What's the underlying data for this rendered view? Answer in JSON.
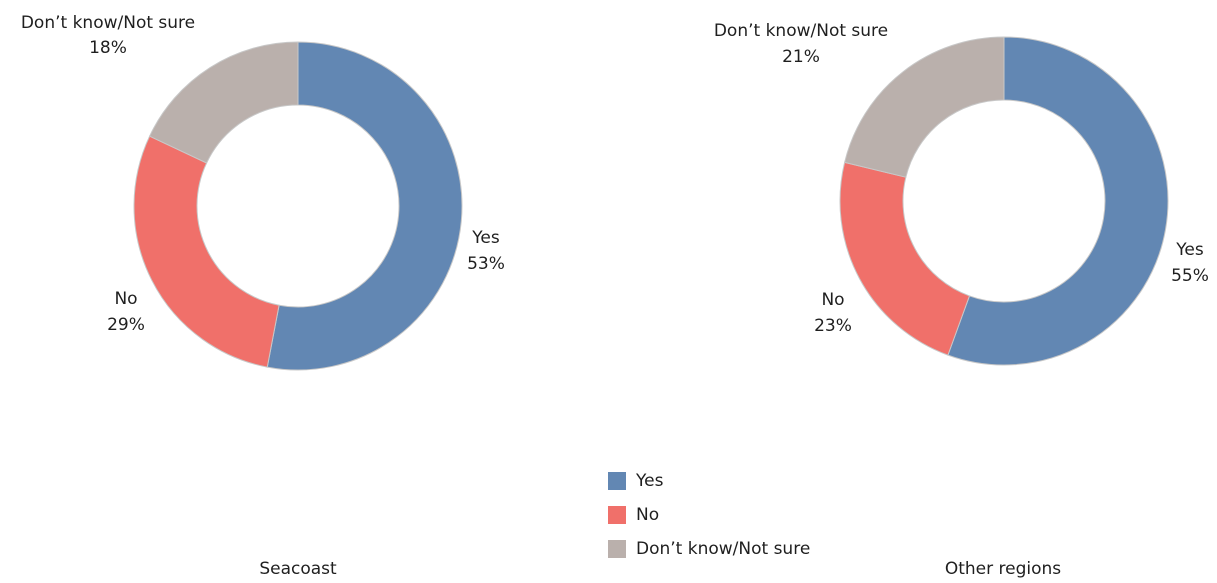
{
  "chart_data": [
    {
      "type": "pie",
      "title": "Seacoast",
      "categories": [
        "Yes",
        "No",
        "Don’t know/Not sure"
      ],
      "values": [
        53,
        29,
        18
      ],
      "labels": [
        "53%",
        "29%",
        "18%"
      ],
      "unit": "%"
    },
    {
      "type": "pie",
      "title": "Other regions",
      "categories": [
        "Yes",
        "No",
        "Don’t know/Not sure"
      ],
      "values": [
        55,
        23,
        21
      ],
      "labels": [
        "55%",
        "23%",
        "21%"
      ],
      "unit": "%"
    }
  ],
  "colors": {
    "Yes": "#6287b3",
    "No": "#f0706a",
    "Don’t know/Not sure": "#bab0ac"
  },
  "legend": {
    "placement": "bottom-center",
    "items": [
      {
        "label": "Yes",
        "color": "#6287b3"
      },
      {
        "label": "No",
        "color": "#f0706a"
      },
      {
        "label": "Don’t know/Not sure",
        "color": "#bab0ac"
      }
    ]
  }
}
